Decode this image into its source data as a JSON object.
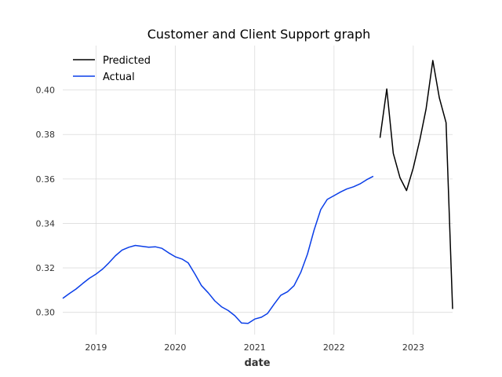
{
  "chart_data": {
    "type": "line",
    "title": "Customer and Client Support graph",
    "xlabel": "date",
    "ylabel": "",
    "x_axis": "date",
    "xlim": [
      "2018-08-01",
      "2023-07-01"
    ],
    "ylim": [
      0.29,
      0.42
    ],
    "grid": true,
    "legend": "top-left",
    "x_ticks": [
      "2019-01-01",
      "2020-01-01",
      "2021-01-01",
      "2022-01-01",
      "2023-01-01"
    ],
    "x_tick_labels": [
      "2019",
      "2020",
      "2021",
      "2022",
      "2023"
    ],
    "y_ticks": [
      0.3,
      0.32,
      0.34,
      0.36,
      0.38,
      0.4
    ],
    "y_tick_labels": [
      "0.30",
      "0.32",
      "0.34",
      "0.36",
      "0.38",
      "0.40"
    ],
    "series": [
      {
        "name": "Predicted",
        "color": "#000000",
        "x": [
          "2022-08-01",
          "2022-09-01",
          "2022-10-01",
          "2022-11-01",
          "2022-12-01",
          "2023-01-01",
          "2023-02-01",
          "2023-03-01",
          "2023-04-01",
          "2023-05-01",
          "2023-06-01",
          "2023-07-01"
        ],
        "y": [
          0.3785,
          0.4005,
          0.3715,
          0.3605,
          0.3548,
          0.365,
          0.378,
          0.3915,
          0.4133,
          0.3965,
          0.3853,
          0.3015
        ]
      },
      {
        "name": "Actual",
        "color": "#0a3ee8",
        "x": [
          "2018-08-01",
          "2018-09-01",
          "2018-10-01",
          "2018-11-01",
          "2018-12-01",
          "2019-01-01",
          "2019-02-01",
          "2019-03-01",
          "2019-04-01",
          "2019-05-01",
          "2019-06-01",
          "2019-07-01",
          "2019-08-01",
          "2019-09-01",
          "2019-10-01",
          "2019-11-01",
          "2019-12-01",
          "2020-01-01",
          "2020-02-01",
          "2020-03-01",
          "2020-04-01",
          "2020-05-01",
          "2020-06-01",
          "2020-07-01",
          "2020-08-01",
          "2020-09-01",
          "2020-10-01",
          "2020-11-01",
          "2020-12-01",
          "2021-01-01",
          "2021-02-01",
          "2021-03-01",
          "2021-04-01",
          "2021-05-01",
          "2021-06-01",
          "2021-07-01",
          "2021-08-01",
          "2021-09-01",
          "2021-10-01",
          "2021-11-01",
          "2021-12-01",
          "2022-01-01",
          "2022-02-01",
          "2022-03-01",
          "2022-04-01",
          "2022-05-01",
          "2022-06-01",
          "2022-07-01"
        ],
        "y": [
          0.3063,
          0.3085,
          0.3105,
          0.313,
          0.3153,
          0.3172,
          0.3195,
          0.3222,
          0.3255,
          0.328,
          0.3293,
          0.3301,
          0.3297,
          0.3293,
          0.3295,
          0.3288,
          0.3268,
          0.325,
          0.324,
          0.3222,
          0.3172,
          0.312,
          0.3088,
          0.3052,
          0.3025,
          0.3008,
          0.2985,
          0.2952,
          0.295,
          0.297,
          0.2978,
          0.2995,
          0.3038,
          0.3077,
          0.3093,
          0.312,
          0.318,
          0.3262,
          0.337,
          0.3462,
          0.3508,
          0.3525,
          0.3542,
          0.3555,
          0.3565,
          0.3578,
          0.3597,
          0.3612
        ]
      }
    ]
  }
}
